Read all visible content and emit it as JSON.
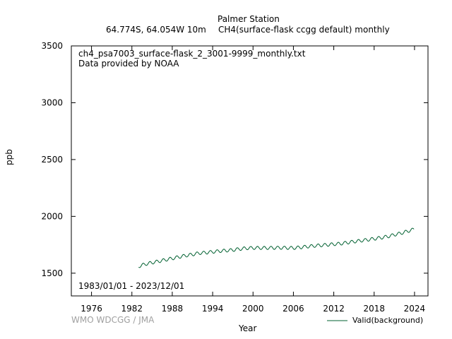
{
  "header": {
    "station": "Palmer Station",
    "location": "64.774S, 64.054W 10m",
    "parameter": "CH4(surface-flask ccgg default) monthly"
  },
  "annotations": {
    "file": "ch4_psa7003_surface-flask_2_3001-9999_monthly.txt",
    "provider": "Data provided by NOAA",
    "period": "1983/01/01 - 2023/12/01",
    "credit": "WMO WDCGG / JMA"
  },
  "colors": {
    "series": "#006030",
    "axis": "#000000",
    "credit": "#a0a0a0"
  },
  "chart_data": {
    "type": "line",
    "xlabel": "Year",
    "ylabel": "ppb",
    "xlim": [
      1973.0,
      2026.0
    ],
    "ylim": [
      1300,
      3500
    ],
    "xticks": [
      1976,
      1982,
      1988,
      1994,
      2000,
      2006,
      2012,
      2018,
      2024
    ],
    "yticks": [
      1500,
      2000,
      2500,
      3000,
      3500
    ],
    "grid": false,
    "legend": "bottom-right",
    "series": [
      {
        "name": "Valid(background)",
        "color": "#006030",
        "x_start": "1983-01",
        "interval": "monthly",
        "annual_mean": [
          [
            1983,
            1560
          ],
          [
            1984,
            1580
          ],
          [
            1985,
            1593
          ],
          [
            1986,
            1605
          ],
          [
            1987,
            1618
          ],
          [
            1988,
            1630
          ],
          [
            1989,
            1643
          ],
          [
            1990,
            1655
          ],
          [
            1991,
            1665
          ],
          [
            1992,
            1677
          ],
          [
            1993,
            1681
          ],
          [
            1994,
            1688
          ],
          [
            1995,
            1695
          ],
          [
            1996,
            1699
          ],
          [
            1997,
            1704
          ],
          [
            1998,
            1713
          ],
          [
            1999,
            1720
          ],
          [
            2000,
            1722
          ],
          [
            2001,
            1722
          ],
          [
            2002,
            1722
          ],
          [
            2003,
            1723
          ],
          [
            2004,
            1724
          ],
          [
            2005,
            1723
          ],
          [
            2006,
            1722
          ],
          [
            2007,
            1727
          ],
          [
            2008,
            1734
          ],
          [
            2009,
            1740
          ],
          [
            2010,
            1745
          ],
          [
            2011,
            1750
          ],
          [
            2012,
            1755
          ],
          [
            2013,
            1760
          ],
          [
            2014,
            1769
          ],
          [
            2015,
            1778
          ],
          [
            2016,
            1786
          ],
          [
            2017,
            1794
          ],
          [
            2018,
            1803
          ],
          [
            2019,
            1812
          ],
          [
            2020,
            1823
          ],
          [
            2021,
            1838
          ],
          [
            2022,
            1852
          ],
          [
            2023,
            1870
          ]
        ],
        "seasonal_amplitude": 14
      }
    ]
  }
}
